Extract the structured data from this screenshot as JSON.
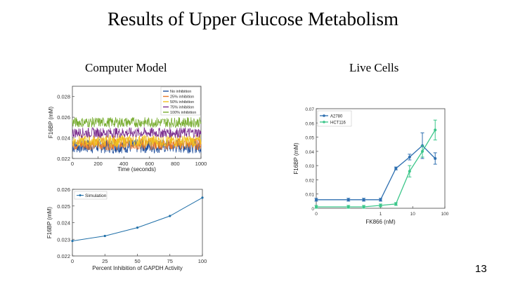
{
  "slide": {
    "title": "Results of Upper Glucose Metabolism",
    "left_heading": "Computer Model",
    "right_heading": "Live Cells",
    "page_number": "13"
  },
  "chart_data": [
    {
      "type": "line",
      "xlabel": "Time (seconds)",
      "ylabel": "F16BP (mM)",
      "xlim": [
        0,
        1000
      ],
      "ylim": [
        0.022,
        0.029
      ],
      "xticks": [
        "0",
        "200",
        "400",
        "600",
        "800",
        "1000"
      ],
      "yticks": [
        "0.022",
        "0.024",
        "0.026",
        "0.028"
      ],
      "legend_position": "top-right",
      "series": [
        {
          "name": "No inhibition",
          "color": "#1f4e9c",
          "mean": 0.0232,
          "amplitude": 0.0007
        },
        {
          "name": "25% inhibition",
          "color": "#e8782a",
          "mean": 0.0234,
          "amplitude": 0.0006
        },
        {
          "name": "50% inhibition",
          "color": "#f0c020",
          "mean": 0.0237,
          "amplitude": 0.0006
        },
        {
          "name": "75% inhibition",
          "color": "#7b2d8e",
          "mean": 0.0245,
          "amplitude": 0.0005
        },
        {
          "name": "100% inhibition",
          "color": "#77ac30",
          "mean": 0.0255,
          "amplitude": 0.0005
        }
      ]
    },
    {
      "type": "line",
      "xlabel": "Percent Inhibition of GAPDH Activity",
      "ylabel": "F16BP (mM)",
      "xlim": [
        0,
        100
      ],
      "ylim": [
        0.022,
        0.026
      ],
      "xticks": [
        "0",
        "25",
        "50",
        "75",
        "100"
      ],
      "yticks": [
        "0.022",
        "0.023",
        "0.024",
        "0.025",
        "0.026"
      ],
      "legend_position": "top-left",
      "series": [
        {
          "name": "Simulation",
          "color": "#1f6fa8",
          "x": [
            0,
            25,
            50,
            75,
            100
          ],
          "y": [
            0.0229,
            0.0232,
            0.0237,
            0.0244,
            0.0255
          ]
        }
      ]
    },
    {
      "type": "line",
      "xlabel": "FK866 (nM)",
      "ylabel": "F16BP (mM)",
      "xscale": "log",
      "xlim": [
        0.01,
        100
      ],
      "ylim": [
        0,
        0.07
      ],
      "xticks": [
        "0",
        "1",
        "10",
        "100"
      ],
      "yticks": [
        "0",
        "0.01",
        "0.02",
        "0.03",
        "0.04",
        "0.05",
        "0.06",
        "0.07"
      ],
      "legend_position": "top-left",
      "series": [
        {
          "name": "A2780",
          "color": "#2e6fb0",
          "x": [
            0.01,
            0.1,
            0.3,
            1,
            3,
            8,
            20,
            50
          ],
          "y": [
            0.006,
            0.006,
            0.006,
            0.006,
            0.028,
            0.036,
            0.044,
            0.035
          ],
          "err": [
            0.001,
            0.001,
            0.001,
            0.001,
            0.001,
            0.002,
            0.009,
            0.004
          ]
        },
        {
          "name": "HCT116",
          "color": "#3cc68a",
          "x": [
            0.01,
            0.1,
            0.3,
            1,
            3,
            8,
            20,
            50
          ],
          "y": [
            0.001,
            0.001,
            0.001,
            0.002,
            0.003,
            0.026,
            0.04,
            0.055
          ],
          "err": [
            0.001,
            0.001,
            0.001,
            0.001,
            0.001,
            0.004,
            0.004,
            0.007
          ]
        }
      ]
    }
  ]
}
